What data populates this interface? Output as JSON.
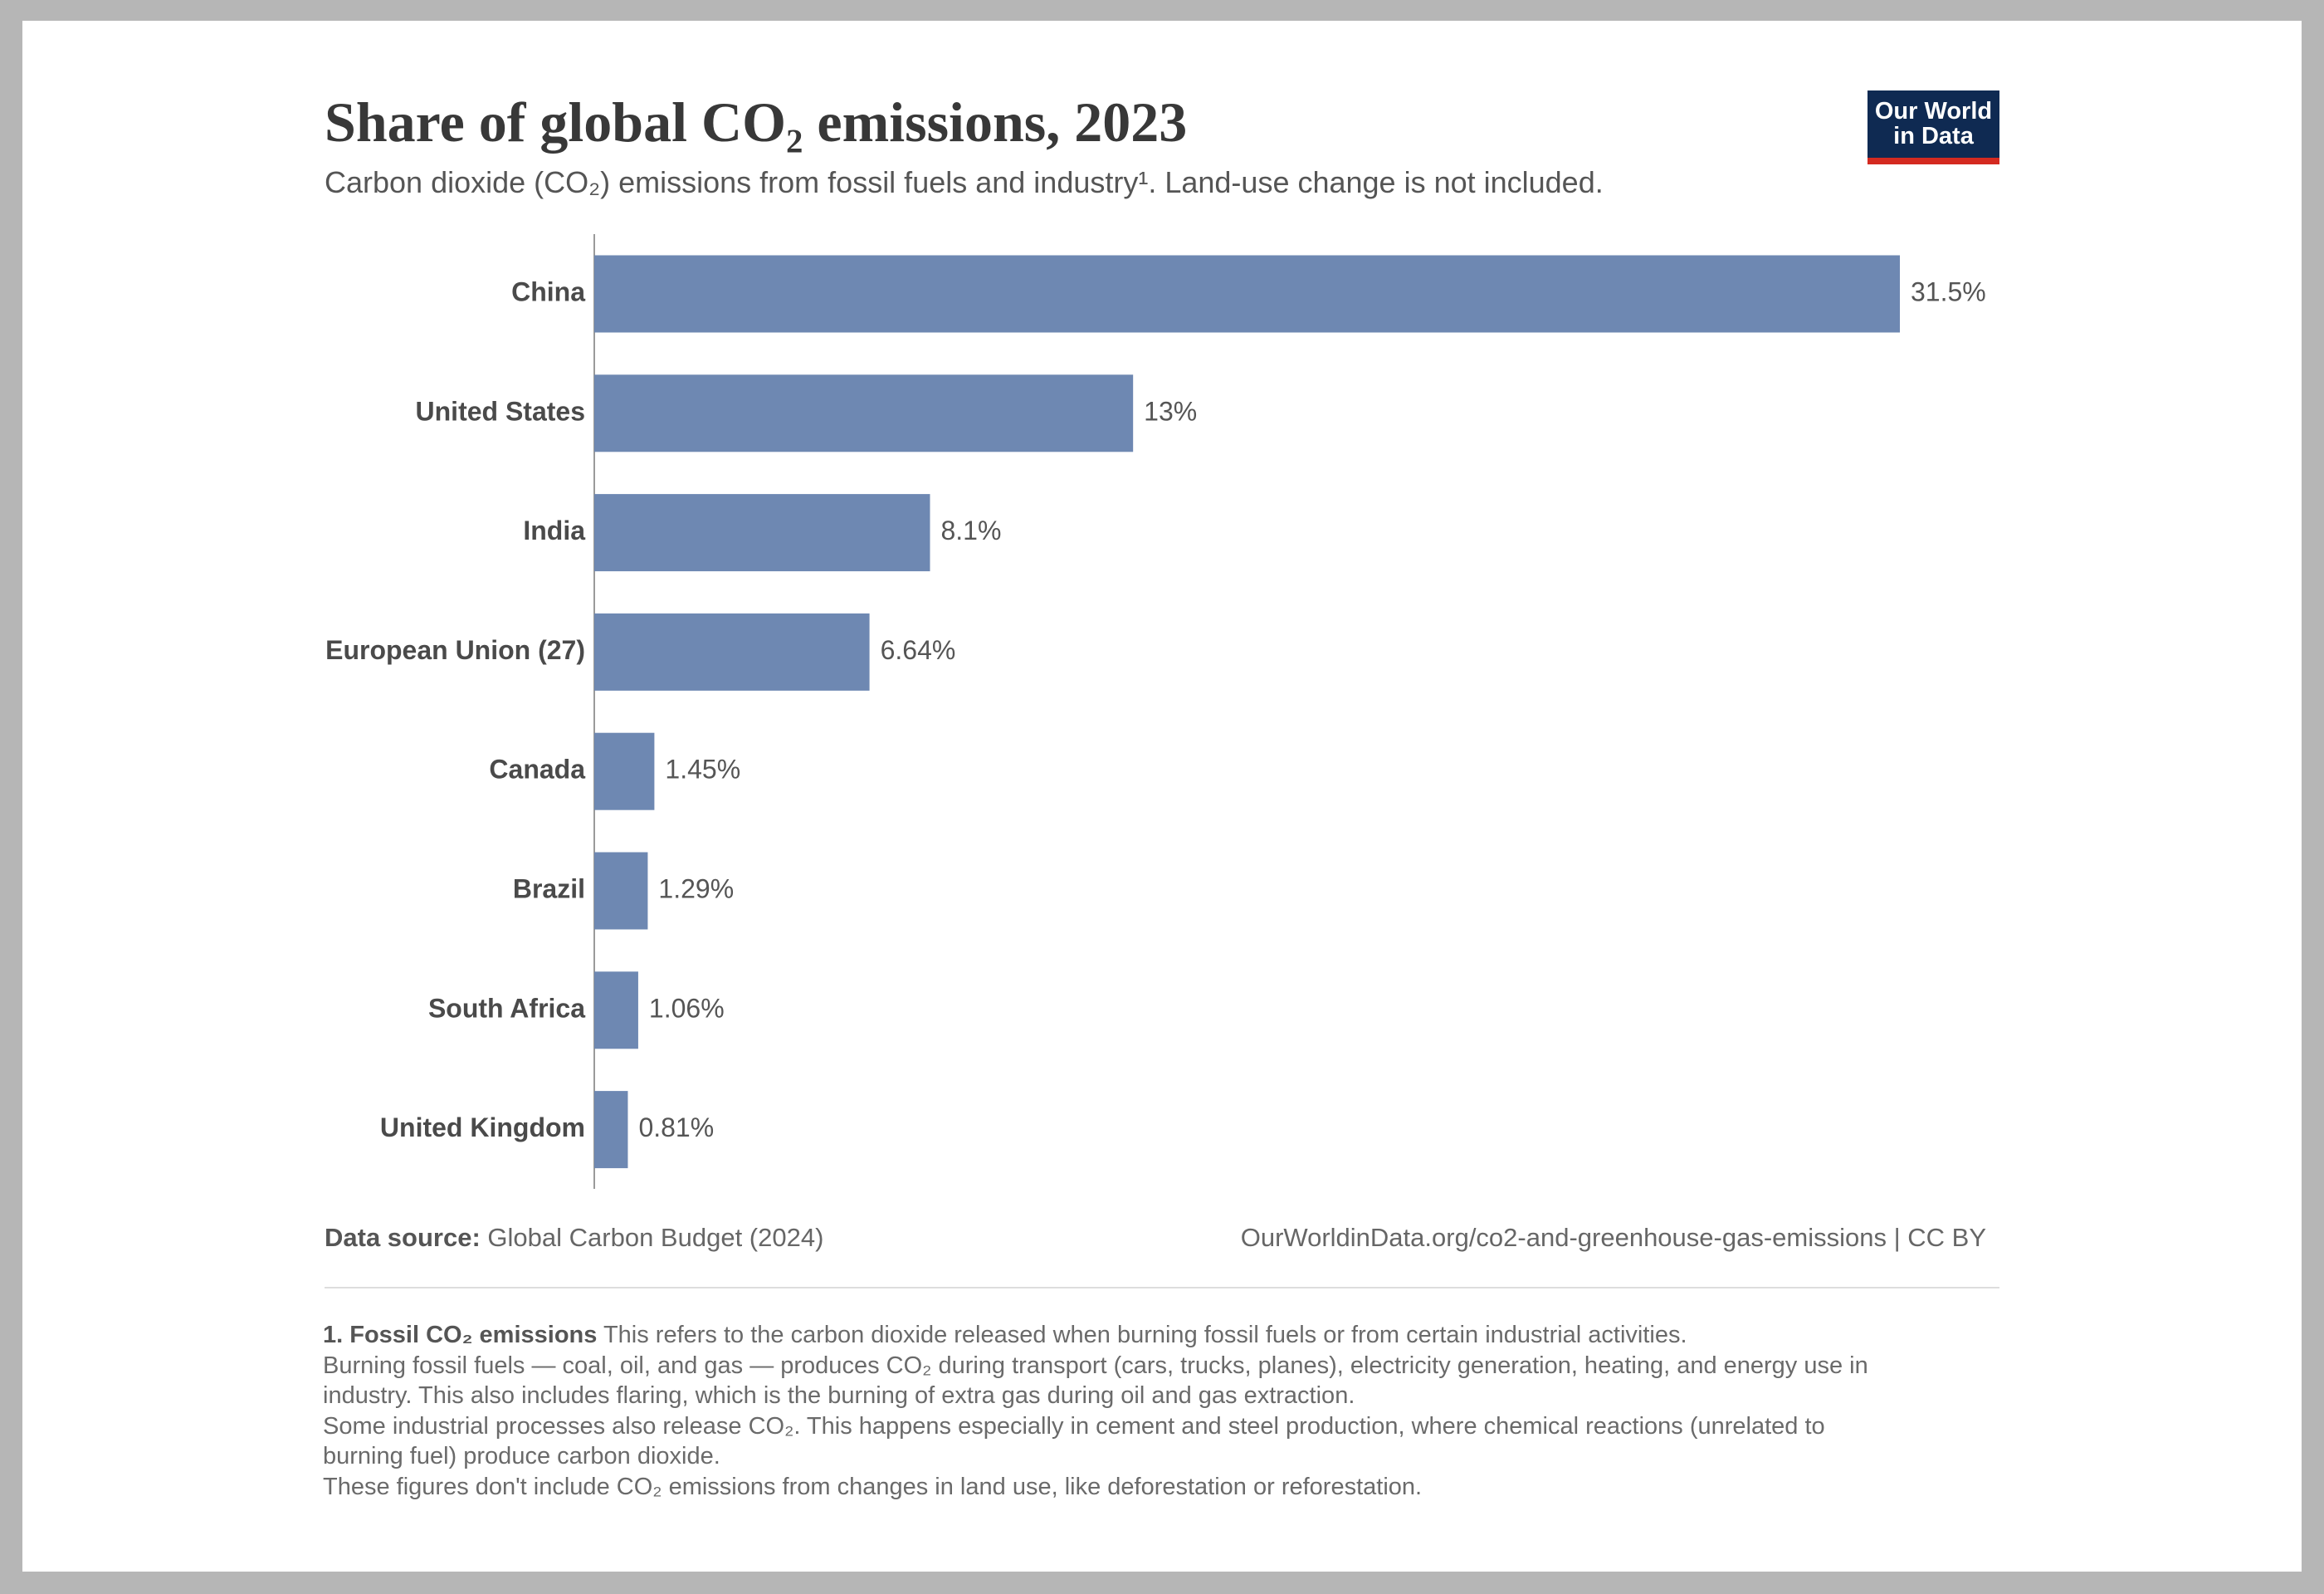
{
  "header": {
    "title": "Share of global CO₂ emissions, 2023",
    "subtitle": "Carbon dioxide (CO₂) emissions from fossil fuels and industry¹. Land-use change is not included.",
    "logo": [
      "Our World",
      "in Data"
    ]
  },
  "chart_data": {
    "type": "bar",
    "orientation": "horizontal",
    "categories": [
      "China",
      "United States",
      "India",
      "European Union (27)",
      "Canada",
      "Brazil",
      "South Africa",
      "United Kingdom"
    ],
    "values": [
      31.5,
      13,
      8.1,
      6.64,
      1.45,
      1.29,
      1.06,
      0.81
    ],
    "value_labels": [
      "31.5%",
      "13%",
      "8.1%",
      "6.64%",
      "1.45%",
      "1.29%",
      "1.06%",
      "0.81%"
    ],
    "color": "#6e88b2"
  },
  "footer": {
    "source_label": "Data source:",
    "source": "Global Carbon Budget (2024)",
    "url": "OurWorldinData.org/co2-and-greenhouse-gas-emissions | CC BY"
  },
  "footnote": {
    "heading": "1. Fossil CO₂ emissions",
    "lines": [
      "This refers to the carbon dioxide released when burning fossil fuels or from certain industrial activities.",
      "Burning fossil fuels — coal, oil, and gas — produces CO₂ during transport (cars, trucks, planes), electricity generation, heating, and energy use in",
      "industry. This also includes flaring, which is the burning of extra gas during oil and gas extraction.",
      "Some industrial processes also release CO₂. This happens especially in cement and steel production, where chemical reactions (unrelated to",
      "burning fuel) produce carbon dioxide.",
      "These figures don't include CO₂ emissions from changes in land use, like deforestation or reforestation."
    ]
  }
}
